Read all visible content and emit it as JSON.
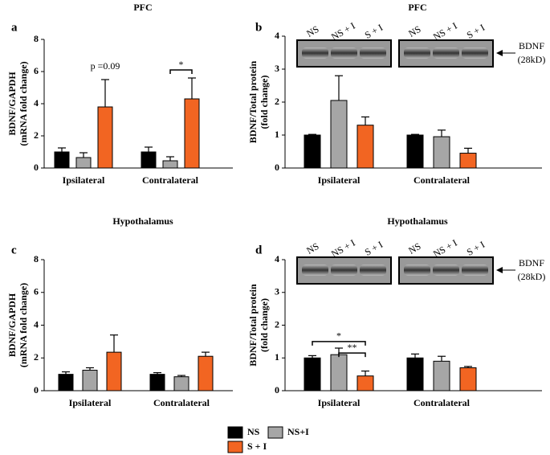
{
  "chart_data": [
    {
      "type": "bar",
      "letter": "a",
      "title": "PFC",
      "ylabel": [
        "BDNF/GAPDH",
        "(mRNA fold change)"
      ],
      "categories": [
        "Ipsilateral",
        "Contralateral"
      ],
      "series": [
        {
          "name": "NS",
          "color": "#000000",
          "values": [
            1.0,
            1.0
          ],
          "errors": [
            0.25,
            0.3
          ]
        },
        {
          "name": "NS+I",
          "color": "#a6a6a6",
          "values": [
            0.65,
            0.45
          ],
          "errors": [
            0.3,
            0.25
          ]
        },
        {
          "name": "S + I",
          "color": "#f26522",
          "values": [
            3.8,
            4.3
          ],
          "errors": [
            1.7,
            1.3
          ]
        }
      ],
      "ylim": [
        0,
        8
      ],
      "yticks": [
        0,
        2,
        4,
        6,
        8
      ],
      "annotations": [
        "p =0.09",
        "*"
      ]
    },
    {
      "type": "bar",
      "letter": "b",
      "title": "PFC",
      "ylabel": [
        "BDNF/Total protein",
        "(fold change)"
      ],
      "categories": [
        "Ipsilateral",
        "Contralateral"
      ],
      "series": [
        {
          "name": "NS",
          "color": "#000000",
          "values": [
            1.0,
            1.0
          ],
          "errors": [
            0.02,
            0.02
          ]
        },
        {
          "name": "NS+I",
          "color": "#a6a6a6",
          "values": [
            2.05,
            0.95
          ],
          "errors": [
            0.75,
            0.2
          ]
        },
        {
          "name": "S + I",
          "color": "#f26522",
          "values": [
            1.3,
            0.45
          ],
          "errors": [
            0.25,
            0.15
          ]
        }
      ],
      "ylim": [
        0,
        4
      ],
      "yticks": [
        0,
        1,
        2,
        3,
        4
      ],
      "blot_labels": [
        "NS",
        "NS + I",
        "S + I"
      ],
      "band_label": [
        "BDNF",
        "(28kD)"
      ]
    },
    {
      "type": "bar",
      "letter": "c",
      "title": "Hypothalamus",
      "ylabel": [
        "BDNF/GAPDH",
        "(mRNA fold change)"
      ],
      "categories": [
        "Ipsilateral",
        "Contralateral"
      ],
      "series": [
        {
          "name": "NS",
          "color": "#000000",
          "values": [
            1.0,
            1.0
          ],
          "errors": [
            0.15,
            0.1
          ]
        },
        {
          "name": "NS+I",
          "color": "#a6a6a6",
          "values": [
            1.25,
            0.85
          ],
          "errors": [
            0.15,
            0.08
          ]
        },
        {
          "name": "S + I",
          "color": "#f26522",
          "values": [
            2.35,
            2.1
          ],
          "errors": [
            1.05,
            0.25
          ]
        }
      ],
      "ylim": [
        0,
        8
      ],
      "yticks": [
        0,
        2,
        4,
        6,
        8
      ]
    },
    {
      "type": "bar",
      "letter": "d",
      "title": "Hypothalamus",
      "ylabel": [
        "BDNF/Total protein",
        "(fold change)"
      ],
      "categories": [
        "Ipsilateral",
        "Contralateral"
      ],
      "series": [
        {
          "name": "NS",
          "color": "#000000",
          "values": [
            1.0,
            1.0
          ],
          "errors": [
            0.07,
            0.12
          ]
        },
        {
          "name": "NS+I",
          "color": "#a6a6a6",
          "values": [
            1.1,
            0.9
          ],
          "errors": [
            0.2,
            0.15
          ]
        },
        {
          "name": "S + I",
          "color": "#f26522",
          "values": [
            0.45,
            0.7
          ],
          "errors": [
            0.15,
            0.04
          ]
        }
      ],
      "ylim": [
        0,
        4
      ],
      "yticks": [
        0,
        1,
        2,
        3,
        4
      ],
      "annotations": [
        "*",
        "**"
      ],
      "blot_labels": [
        "NS",
        "NS + I",
        "S + I"
      ],
      "band_label": [
        "BDNF",
        "(28kD)"
      ]
    }
  ]
}
